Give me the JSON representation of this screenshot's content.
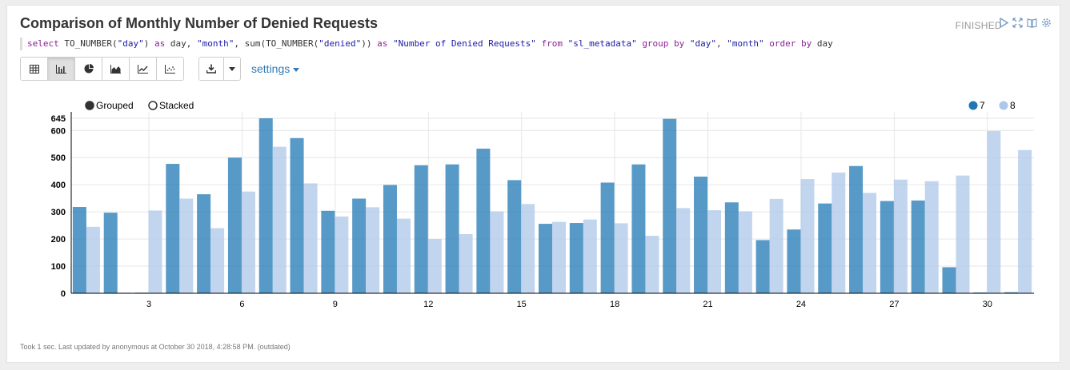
{
  "paragraph": {
    "title": "Comparison of Monthly Number of Denied Requests",
    "status": "FINISHED",
    "sql": [
      {
        "t": "select ",
        "c": "#8b2294"
      },
      {
        "t": "TO_NUMBER(",
        "c": "#333333"
      },
      {
        "t": "\"day\"",
        "c": "#1a1aa6"
      },
      {
        "t": ") ",
        "c": "#333333"
      },
      {
        "t": "as ",
        "c": "#8b2294"
      },
      {
        "t": "day, ",
        "c": "#333333"
      },
      {
        "t": "\"month\"",
        "c": "#1a1aa6"
      },
      {
        "t": ", sum(TO_NUMBER(",
        "c": "#333333"
      },
      {
        "t": "\"denied\"",
        "c": "#1a1aa6"
      },
      {
        "t": ")) ",
        "c": "#333333"
      },
      {
        "t": "as ",
        "c": "#8b2294"
      },
      {
        "t": "\"Number of Denied Requests\" ",
        "c": "#1a1aa6"
      },
      {
        "t": "from ",
        "c": "#8b2294"
      },
      {
        "t": "\"sl_metadata\" ",
        "c": "#1a1aa6"
      },
      {
        "t": "group by ",
        "c": "#8b2294"
      },
      {
        "t": "\"day\"",
        "c": "#1a1aa6"
      },
      {
        "t": ", ",
        "c": "#333333"
      },
      {
        "t": "\"month\" ",
        "c": "#1a1aa6"
      },
      {
        "t": "order by ",
        "c": "#8b2294"
      },
      {
        "t": "day",
        "c": "#333333"
      }
    ],
    "settings_label": "settings",
    "footer": "Took 1 sec. Last updated by anonymous at October 30 2018, 4:28:58 PM. (outdated)",
    "header_icons": [
      "run-icon",
      "expand-icon",
      "book-icon",
      "gear-icon"
    ],
    "toolbar_icons": [
      "table-icon",
      "bar-chart-icon",
      "pie-chart-icon",
      "area-chart-icon",
      "line-chart-icon",
      "scatter-chart-icon"
    ],
    "active_view": "bar-chart-icon",
    "download_icons": [
      "download-icon",
      "caret-down-icon"
    ]
  },
  "chart_data": {
    "type": "bar",
    "mode_options": [
      {
        "label": "Grouped",
        "selected": true
      },
      {
        "label": "Stacked",
        "selected": false
      }
    ],
    "legend_placement": "top-right",
    "x": [
      1,
      2,
      3,
      4,
      5,
      6,
      7,
      8,
      9,
      10,
      11,
      12,
      13,
      14,
      15,
      16,
      17,
      18,
      19,
      20,
      21,
      22,
      23,
      24,
      25,
      26,
      27,
      28,
      29,
      30,
      31
    ],
    "x_tick_labels": [
      "3",
      "6",
      "9",
      "12",
      "15",
      "18",
      "21",
      "24",
      "27",
      "30"
    ],
    "x_tick_values": [
      3,
      6,
      9,
      12,
      15,
      18,
      21,
      24,
      27,
      30
    ],
    "y_tick_labels": [
      "0",
      "100",
      "200",
      "300",
      "400",
      "500",
      "600",
      "645"
    ],
    "y_tick_values": [
      0,
      100,
      200,
      300,
      400,
      500,
      600,
      645
    ],
    "ylim": [
      0,
      645
    ],
    "grid": true,
    "series": [
      {
        "name": "7",
        "color": "#1f77b4",
        "values": [
          318,
          297,
          0,
          477,
          365,
          500,
          645,
          572,
          304,
          349,
          399,
          472,
          475,
          533,
          417,
          256,
          259,
          408,
          475,
          643,
          430,
          335,
          196,
          235,
          331,
          469,
          340,
          342,
          96,
          3,
          4
        ]
      },
      {
        "name": "8",
        "color": "#aec7e8",
        "values": [
          245,
          1,
          305,
          349,
          240,
          375,
          540,
          405,
          283,
          317,
          275,
          200,
          218,
          302,
          329,
          263,
          272,
          258,
          212,
          314,
          306,
          302,
          348,
          421,
          445,
          370,
          419,
          413,
          434,
          598,
          528
        ]
      }
    ]
  }
}
